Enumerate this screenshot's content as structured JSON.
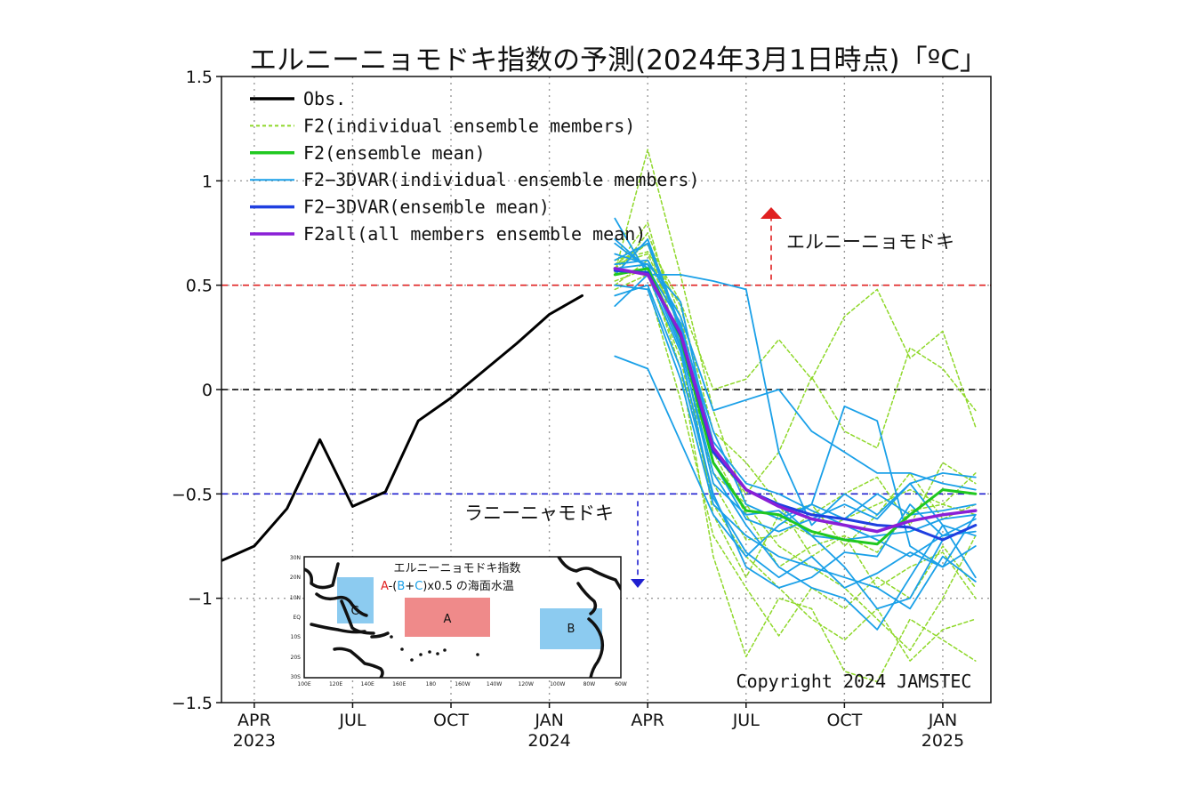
{
  "chart_data": {
    "type": "line",
    "title": "エルニーニョモドキ指数の予測(2024年3月1日時点)「ºC」",
    "xlabel": "",
    "ylabel": "",
    "ylim": [
      -1.5,
      1.5
    ],
    "yticks": [
      -1.5,
      -1,
      -0.5,
      0,
      0.5,
      1,
      1.5
    ],
    "ytick_labels": [
      "−1.5",
      "−1",
      "−0.5",
      "0",
      "0.5",
      "1",
      "1.5"
    ],
    "xlim": [
      "2023-03",
      "2025-02-15"
    ],
    "xticks": [
      {
        "date": "2023-04",
        "label": "APR",
        "year": "2023"
      },
      {
        "date": "2023-07",
        "label": "JUL",
        "year": ""
      },
      {
        "date": "2023-10",
        "label": "OCT",
        "year": ""
      },
      {
        "date": "2024-01",
        "label": "JAN",
        "year": "2024"
      },
      {
        "date": "2024-04",
        "label": "APR",
        "year": ""
      },
      {
        "date": "2024-07",
        "label": "JUL",
        "year": ""
      },
      {
        "date": "2024-10",
        "label": "OCT",
        "year": ""
      },
      {
        "date": "2025-01",
        "label": "JAN",
        "year": "2025"
      }
    ],
    "grid": true,
    "legend_position": "top-left",
    "reference_lines": [
      {
        "y": 0.5,
        "color": "#e02020",
        "style": "dashed"
      },
      {
        "y": 0,
        "color": "#000000",
        "style": "dashed"
      },
      {
        "y": -0.5,
        "color": "#2020d0",
        "style": "dashed"
      }
    ],
    "annotations": [
      {
        "text": "エルニーニョモドキ",
        "arrow": "up",
        "color": "#e02020"
      },
      {
        "text": "ラニーニャモドキ",
        "arrow": "down",
        "color": "#2020d0"
      }
    ],
    "copyright": "Copyright 2024 JAMSTEC",
    "series": [
      {
        "name": "Obs.",
        "color": "#000000",
        "style": "solid",
        "width": 3,
        "x": [
          "2023-03",
          "2023-04",
          "2023-05",
          "2023-06",
          "2023-07",
          "2023-08",
          "2023-09",
          "2023-10",
          "2023-11",
          "2023-12",
          "2024-01",
          "2024-02"
        ],
        "values": [
          -0.82,
          -0.75,
          -0.57,
          -0.24,
          -0.56,
          -0.49,
          -0.15,
          -0.04,
          0.09,
          0.22,
          0.36,
          0.45
        ]
      },
      {
        "name": "F2(individual ensemble members)",
        "color": "#8fd82a",
        "style": "dashed",
        "width": 1.5,
        "x": [
          "2024-03",
          "2024-04",
          "2024-05",
          "2024-06",
          "2024-07",
          "2024-08",
          "2024-09",
          "2024-10",
          "2024-11",
          "2024-12",
          "2025-01",
          "2025-02"
        ],
        "members": [
          [
            0.56,
            1.15,
            0.55,
            -0.1,
            -0.55,
            -0.75,
            -0.85,
            -0.95,
            -1.1,
            -1.25,
            -1.0,
            -0.7
          ],
          [
            0.6,
            0.7,
            0.42,
            0.0,
            0.05,
            0.24,
            0.05,
            0.35,
            0.48,
            0.15,
            0.28,
            -0.18
          ],
          [
            0.5,
            0.62,
            0.3,
            -0.6,
            -0.9,
            -0.6,
            -0.55,
            -0.75,
            -0.6,
            -0.4,
            -0.62,
            -0.55
          ],
          [
            0.58,
            0.8,
            0.25,
            -0.3,
            -0.5,
            -0.3,
            0.06,
            -0.2,
            -0.28,
            0.2,
            0.1,
            -0.1
          ],
          [
            0.52,
            0.58,
            0.1,
            -0.8,
            -1.28,
            -1.0,
            -1.05,
            -1.35,
            -1.4,
            -1.1,
            -1.2,
            -1.3
          ],
          [
            0.62,
            0.66,
            0.4,
            -0.2,
            -0.35,
            -0.55,
            -0.8,
            -0.7,
            -0.95,
            -0.85,
            -0.78,
            -1.0
          ],
          [
            0.45,
            0.5,
            -0.05,
            -0.7,
            -0.95,
            -1.18,
            -0.95,
            -1.05,
            -0.9,
            -1.0,
            -0.75,
            -0.95
          ],
          [
            0.55,
            0.75,
            0.35,
            -0.3,
            -0.6,
            -0.85,
            -0.75,
            -0.7,
            -0.78,
            -0.58,
            -0.55,
            -0.6
          ],
          [
            0.6,
            0.65,
            0.3,
            -0.45,
            -0.72,
            -0.7,
            -0.6,
            -0.5,
            -0.42,
            -0.65,
            -0.35,
            -0.45
          ],
          [
            0.48,
            0.55,
            0.15,
            -0.55,
            -0.8,
            -0.95,
            -1.1,
            -1.2,
            -1.05,
            -1.3,
            -1.15,
            -1.1
          ],
          [
            0.58,
            0.7,
            0.2,
            -0.4,
            -0.55,
            -0.62,
            -0.7,
            -0.62,
            -0.55,
            -0.48,
            -0.55,
            -0.4
          ]
        ]
      },
      {
        "name": "F2(ensemble mean)",
        "color": "#20c820",
        "style": "solid",
        "width": 3,
        "x": [
          "2024-03",
          "2024-04",
          "2024-05",
          "2024-06",
          "2024-07",
          "2024-08",
          "2024-09",
          "2024-10",
          "2024-11",
          "2024-12",
          "2025-01",
          "2025-02"
        ],
        "values": [
          0.55,
          0.58,
          0.25,
          -0.35,
          -0.58,
          -0.6,
          -0.68,
          -0.72,
          -0.74,
          -0.6,
          -0.48,
          -0.5
        ]
      },
      {
        "name": "F2−3DVAR(individual ensemble members)",
        "color": "#1aa0e8",
        "style": "solid",
        "width": 1.8,
        "x": [
          "2024-03",
          "2024-04",
          "2024-05",
          "2024-06",
          "2024-07",
          "2024-08",
          "2024-09",
          "2024-10",
          "2024-11",
          "2024-12",
          "2025-01",
          "2025-02"
        ],
        "members": [
          [
            0.82,
            0.55,
            0.55,
            0.52,
            0.48,
            -0.3,
            -0.65,
            -0.5,
            -0.6,
            -0.45,
            -0.4,
            -0.42
          ],
          [
            0.16,
            0.1,
            -0.25,
            -0.6,
            -0.8,
            -0.65,
            -0.55,
            -0.08,
            -0.15,
            -0.75,
            -0.85,
            -0.6
          ],
          [
            0.6,
            0.62,
            0.35,
            -0.1,
            -0.05,
            0.0,
            -0.2,
            -0.3,
            -0.4,
            -0.4,
            -0.45,
            -0.48
          ],
          [
            0.7,
            0.58,
            0.2,
            -0.4,
            -0.65,
            -0.85,
            -0.95,
            -1.0,
            -1.15,
            -0.9,
            -0.65,
            -0.9
          ],
          [
            0.45,
            0.5,
            0.1,
            -0.5,
            -0.85,
            -0.95,
            -0.9,
            -0.78,
            -0.8,
            -0.55,
            -0.7,
            -0.62
          ],
          [
            0.55,
            0.72,
            0.3,
            -0.2,
            -0.55,
            -0.62,
            -0.55,
            -0.62,
            -0.5,
            -0.6,
            -0.58,
            -0.55
          ],
          [
            0.65,
            0.6,
            0.42,
            -0.3,
            -0.48,
            -0.55,
            -0.7,
            -0.85,
            -1.05,
            -1.0,
            -0.72,
            -0.65
          ],
          [
            0.5,
            0.48,
            0.05,
            -0.55,
            -0.7,
            -0.8,
            -0.85,
            -0.9,
            -0.95,
            -1.05,
            -0.8,
            -0.92
          ],
          [
            0.62,
            0.7,
            0.28,
            -0.35,
            -0.62,
            -0.68,
            -0.62,
            -0.55,
            -0.62,
            -0.45,
            -0.65,
            -0.7
          ],
          [
            0.58,
            0.6,
            0.22,
            -0.45,
            -0.6,
            -0.58,
            -0.7,
            -0.72,
            -0.7,
            -0.68,
            -0.62,
            -0.6
          ],
          [
            0.4,
            0.55,
            0.18,
            -0.52,
            -0.78,
            -0.9,
            -0.8,
            -0.95,
            -0.88,
            -0.78,
            -0.85,
            -0.75
          ],
          [
            0.72,
            0.58,
            0.32,
            -0.25,
            -0.45,
            -0.5,
            -0.58,
            -0.65,
            -0.72,
            -0.8,
            -0.7,
            -0.68
          ]
        ]
      },
      {
        "name": "F2−3DVAR(ensemble mean)",
        "color": "#1f3fe0",
        "style": "solid",
        "width": 3,
        "x": [
          "2024-03",
          "2024-04",
          "2024-05",
          "2024-06",
          "2024-07",
          "2024-08",
          "2024-09",
          "2024-10",
          "2024-11",
          "2024-12",
          "2025-01",
          "2025-02"
        ],
        "values": [
          0.57,
          0.56,
          0.26,
          -0.3,
          -0.48,
          -0.55,
          -0.6,
          -0.62,
          -0.65,
          -0.66,
          -0.72,
          -0.65
        ]
      },
      {
        "name": "F2all(all members ensemble mean)",
        "color": "#8a1fd6",
        "style": "solid",
        "width": 3.5,
        "x": [
          "2024-03",
          "2024-04",
          "2024-05",
          "2024-06",
          "2024-07",
          "2024-08",
          "2024-09",
          "2024-10",
          "2024-11",
          "2024-12",
          "2025-01",
          "2025-02"
        ],
        "values": [
          0.58,
          0.55,
          0.27,
          -0.28,
          -0.48,
          -0.56,
          -0.62,
          -0.65,
          -0.68,
          -0.63,
          -0.6,
          -0.58
        ]
      }
    ]
  },
  "inset": {
    "title": "エルニーニョモドキ指数",
    "formula_parts": [
      {
        "text": "A",
        "color": "#e02020"
      },
      {
        "text": "-(",
        "color": "#111111"
      },
      {
        "text": "B",
        "color": "#1aa0e8"
      },
      {
        "text": "+",
        "color": "#111111"
      },
      {
        "text": "C",
        "color": "#1aa0e8"
      },
      {
        "text": ")x0.5 の海面水温",
        "color": "#111111"
      }
    ],
    "boxes": [
      {
        "label": "A",
        "color": "#ef8a8a"
      },
      {
        "label": "B",
        "color": "#8ccbf0"
      },
      {
        "label": "C",
        "color": "#8ccbf0"
      }
    ],
    "lat_labels": [
      "30N",
      "20N",
      "10N",
      "EQ",
      "10S",
      "20S",
      "30S"
    ],
    "lon_labels": [
      "100E",
      "120E",
      "140E",
      "160E",
      "180",
      "160W",
      "140W",
      "120W",
      "100W",
      "80W",
      "60W"
    ]
  }
}
